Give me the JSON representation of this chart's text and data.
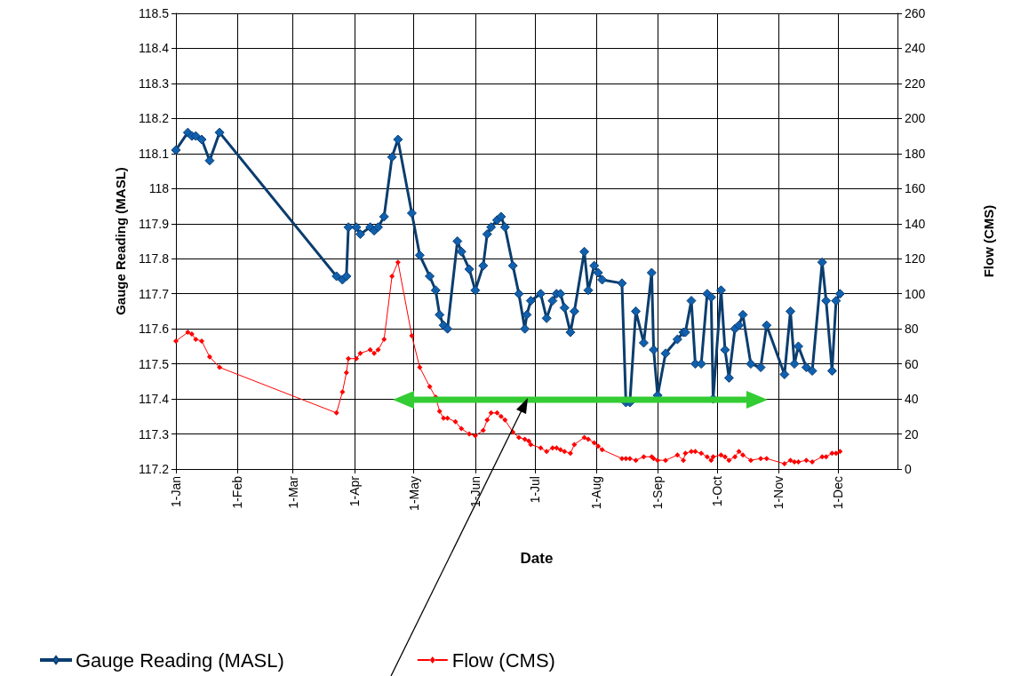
{
  "chart_data": {
    "type": "line",
    "xlabel": "Date",
    "ylabel": "Gauge Reading (MASL)",
    "y2label": "Flow (CMS)",
    "xlim": [
      "--01-01",
      "--12-31"
    ],
    "xticks": [
      {
        "value": "--01-01",
        "label": "1-Jan"
      },
      {
        "value": "--02-01",
        "label": "1-Feb"
      },
      {
        "value": "--03-01",
        "label": "1-Mar"
      },
      {
        "value": "--04-01",
        "label": "1-Apr"
      },
      {
        "value": "--05-01",
        "label": "1-May"
      },
      {
        "value": "--06-01",
        "label": "1-Jun"
      },
      {
        "value": "--07-01",
        "label": "1-Jul"
      },
      {
        "value": "--08-01",
        "label": "1-Aug"
      },
      {
        "value": "--09-01",
        "label": "1-Sep"
      },
      {
        "value": "--10-01",
        "label": "1-Oct"
      },
      {
        "value": "--11-01",
        "label": "1-Nov"
      },
      {
        "value": "--12-01",
        "label": "1-Dec"
      }
    ],
    "ylim": [
      117.2,
      118.5
    ],
    "yticks": [
      117.2,
      117.3,
      117.4,
      117.5,
      117.6,
      117.7,
      117.8,
      117.9,
      118,
      118.1,
      118.2,
      118.3,
      118.4,
      118.5
    ],
    "y2lim": [
      0,
      260
    ],
    "y2ticks": [
      0,
      20,
      40,
      60,
      80,
      100,
      120,
      140,
      160,
      180,
      200,
      220,
      240,
      260
    ],
    "grid": true,
    "legend": "bottom left",
    "marker": "diamond",
    "line_style": "solid",
    "series": [
      {
        "name": "Gauge Reading (MASL)",
        "color": "#0b3d6e",
        "x": [
          "--01-01",
          "--01-07",
          "--01-09",
          "--01-11",
          "--01-14",
          "--01-18",
          "--01-23",
          "--03-23",
          "--03-26",
          "--03-28",
          "--03-29",
          "--04-02",
          "--04-04",
          "--04-09",
          "--04-11",
          "--04-13",
          "--04-16",
          "--04-20",
          "--04-23",
          "--04-30",
          "--05-04",
          "--05-09",
          "--05-12",
          "--05-14",
          "--05-16",
          "--05-18",
          "--05-23",
          "--05-25",
          "--05-29",
          "--06-01",
          "--06-05",
          "--06-07",
          "--06-09",
          "--06-12",
          "--06-14",
          "--06-16",
          "--06-20",
          "--06-23",
          "--06-26",
          "--06-27",
          "--06-29",
          "--07-04",
          "--07-07",
          "--07-10",
          "--07-12",
          "--07-14",
          "--07-16",
          "--07-19",
          "--07-21",
          "--07-26",
          "--07-28",
          "--07-31",
          "--08-02",
          "--08-04",
          "--08-14",
          "--08-16",
          "--08-18",
          "--08-21",
          "--08-25",
          "--08-29",
          "--08-30",
          "--09-01",
          "--09-05",
          "--09-11",
          "--09-14",
          "--09-15",
          "--09-18",
          "--09-20",
          "--09-23",
          "--09-26",
          "--09-28",
          "--09-29",
          "--10-03",
          "--10-05",
          "--10-07",
          "--10-10",
          "--10-12",
          "--10-14",
          "--10-18",
          "--10-23",
          "--10-26",
          "--11-04",
          "--11-07",
          "--11-09",
          "--11-11",
          "--11-15",
          "--11-18",
          "--11-23",
          "--11-25",
          "--11-28",
          "--11-30",
          "--12-02"
        ],
        "values": [
          118.11,
          118.16,
          118.15,
          118.15,
          118.14,
          118.08,
          118.16,
          117.75,
          117.74,
          117.75,
          117.89,
          117.89,
          117.87,
          117.89,
          117.88,
          117.89,
          117.92,
          118.09,
          118.14,
          117.93,
          117.81,
          117.75,
          117.71,
          117.64,
          117.61,
          117.6,
          117.85,
          117.82,
          117.77,
          117.71,
          117.78,
          117.87,
          117.89,
          117.91,
          117.92,
          117.89,
          117.78,
          117.7,
          117.6,
          117.64,
          117.68,
          117.7,
          117.63,
          117.68,
          117.7,
          117.7,
          117.66,
          117.59,
          117.65,
          117.82,
          117.71,
          117.78,
          117.76,
          117.74,
          117.73,
          117.39,
          117.39,
          117.65,
          117.56,
          117.76,
          117.54,
          117.41,
          117.53,
          117.57,
          117.59,
          117.59,
          117.68,
          117.5,
          117.5,
          117.7,
          117.69,
          117.4,
          117.71,
          117.54,
          117.46,
          117.6,
          117.61,
          117.64,
          117.5,
          117.49,
          117.61,
          117.47,
          117.65,
          117.5,
          117.55,
          117.49,
          117.48,
          117.79,
          117.68,
          117.48,
          117.68,
          117.7
        ]
      },
      {
        "name": "Flow (CMS)",
        "color": "#ff0000",
        "axis": "y2",
        "x": [
          "--01-01",
          "--01-07",
          "--01-09",
          "--01-11",
          "--01-14",
          "--01-18",
          "--01-23",
          "--03-23",
          "--03-26",
          "--03-28",
          "--03-29",
          "--04-02",
          "--04-04",
          "--04-09",
          "--04-11",
          "--04-13",
          "--04-16",
          "--04-20",
          "--04-23",
          "--04-30",
          "--05-04",
          "--05-09",
          "--05-12",
          "--05-14",
          "--05-16",
          "--05-18",
          "--05-22",
          "--05-25",
          "--05-29",
          "--06-01",
          "--06-05",
          "--06-07",
          "--06-09",
          "--06-12",
          "--06-14",
          "--06-16",
          "--06-20",
          "--06-23",
          "--06-26",
          "--06-28",
          "--06-29",
          "--07-04",
          "--07-07",
          "--07-10",
          "--07-12",
          "--07-14",
          "--07-16",
          "--07-19",
          "--07-21",
          "--07-26",
          "--07-28",
          "--07-31",
          "--08-02",
          "--08-04",
          "--08-14",
          "--08-16",
          "--08-18",
          "--08-21",
          "--08-25",
          "--08-29",
          "--08-30",
          "--09-01",
          "--09-05",
          "--09-11",
          "--09-14",
          "--09-15",
          "--09-18",
          "--09-20",
          "--09-23",
          "--09-26",
          "--09-28",
          "--09-29",
          "--10-03",
          "--10-05",
          "--10-07",
          "--10-10",
          "--10-12",
          "--10-14",
          "--10-18",
          "--10-23",
          "--10-26",
          "--11-04",
          "--11-07",
          "--11-09",
          "--11-11",
          "--11-15",
          "--11-18",
          "--11-23",
          "--11-25",
          "--11-28",
          "--11-30",
          "--12-02"
        ],
        "values": [
          73,
          78,
          77,
          74,
          73,
          64,
          58,
          32,
          44,
          55,
          63,
          63,
          66,
          68,
          66,
          68,
          74,
          110,
          118,
          76,
          58,
          47,
          41,
          33,
          29,
          29,
          27,
          23,
          20,
          19,
          22,
          28,
          32,
          32,
          30,
          28,
          21,
          18,
          17,
          16,
          14,
          12,
          10,
          12,
          12,
          11,
          10,
          9,
          14,
          18,
          17,
          15,
          13,
          11,
          6,
          6,
          6,
          5,
          7,
          7,
          6,
          5,
          5,
          8,
          5,
          9,
          10,
          10,
          9,
          7,
          5,
          7,
          8,
          7,
          5,
          7,
          10,
          8,
          5,
          6,
          6,
          3,
          5,
          4,
          4,
          5,
          4,
          7,
          7,
          9,
          9,
          10
        ]
      }
    ]
  }
}
